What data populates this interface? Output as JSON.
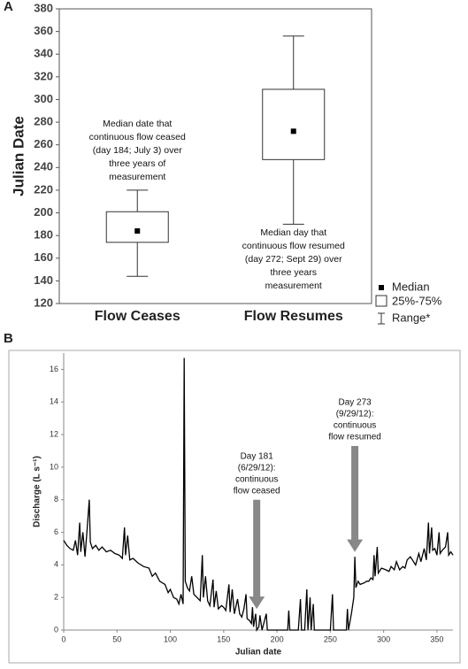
{
  "chart_data": [
    {
      "type": "box",
      "panel": "A",
      "ylabel": "Julian Date",
      "categories": [
        "Flow Ceases",
        "Flow Resumes"
      ],
      "boxes": [
        {
          "min": 144,
          "q1": 174,
          "median": 184,
          "q3": 201,
          "max": 220
        },
        {
          "min": 190,
          "q1": 247,
          "median": 272,
          "q3": 309,
          "max": 356
        }
      ],
      "ylim": [
        120,
        380
      ],
      "yticks": [
        120,
        140,
        160,
        180,
        200,
        220,
        240,
        260,
        280,
        300,
        320,
        340,
        360,
        380
      ],
      "legend": [
        "Median",
        "25%-75%",
        "Range*"
      ],
      "annotations": [
        {
          "lines": [
            "Median date that",
            "continuous flow ceased",
            "(day 184; July 3) over",
            "three years of",
            "measurement"
          ]
        },
        {
          "lines": [
            "Median day that",
            "continuous flow resumed",
            "(day 272; Sept 29) over",
            "three years",
            "measurement"
          ]
        }
      ]
    },
    {
      "type": "line",
      "panel": "B",
      "ylabel": "Discharge (L s⁻¹)",
      "xlabel": "Julian date",
      "color": "#000000",
      "xlim": [
        0,
        365
      ],
      "xticks": [
        0,
        50,
        100,
        150,
        200,
        250,
        300,
        350
      ],
      "ylim": [
        0,
        17
      ],
      "yticks": [
        0,
        2,
        4,
        6,
        8,
        10,
        12,
        14,
        16
      ],
      "x": [
        0,
        3,
        6,
        9,
        11,
        13,
        15,
        16,
        18,
        20,
        22,
        24,
        25,
        27,
        30,
        33,
        36,
        40,
        44,
        48,
        52,
        55,
        57,
        58,
        60,
        62,
        65,
        70,
        75,
        80,
        83,
        86,
        90,
        95,
        98,
        100,
        103,
        106,
        108,
        110,
        112,
        113,
        114,
        116,
        118,
        120,
        122,
        125,
        128,
        130,
        131,
        133,
        135,
        137,
        140,
        141,
        143,
        145,
        148,
        150,
        152,
        155,
        156,
        158,
        160,
        163,
        165,
        167,
        169,
        171,
        172,
        174,
        176,
        177,
        178,
        180,
        181,
        183,
        184,
        186,
        190,
        191,
        210,
        211,
        212,
        220,
        222,
        223,
        226,
        228,
        229,
        231,
        232,
        234,
        235,
        250,
        252,
        253,
        265,
        266,
        267,
        270,
        272,
        273,
        274,
        276,
        278,
        282,
        284,
        286,
        288,
        290,
        291,
        292,
        294,
        295,
        298,
        302,
        305,
        307,
        310,
        312,
        315,
        318,
        320,
        322,
        325,
        327,
        330,
        333,
        335,
        338,
        340,
        342,
        343,
        345,
        346,
        348,
        350,
        352,
        353,
        355,
        358,
        360,
        361,
        363,
        365
      ],
      "values": [
        5.5,
        5.2,
        5.0,
        4.9,
        5.5,
        4.6,
        6.6,
        4.8,
        6.0,
        4.5,
        6.2,
        8.0,
        5.4,
        5.0,
        5.2,
        4.9,
        5.1,
        4.8,
        4.9,
        4.7,
        4.6,
        4.4,
        6.3,
        4.6,
        5.8,
        4.3,
        4.4,
        4.1,
        3.9,
        3.8,
        3.3,
        3.5,
        3.0,
        2.8,
        2.3,
        2.5,
        2.0,
        1.9,
        1.6,
        2.2,
        1.6,
        16.7,
        3.0,
        2.6,
        2.4,
        3.3,
        2.2,
        2.0,
        1.8,
        4.6,
        2.0,
        3.3,
        1.8,
        1.5,
        3.1,
        1.4,
        2.4,
        1.3,
        1.5,
        1.4,
        1.2,
        2.8,
        1.1,
        2.5,
        1.0,
        1.9,
        1.0,
        0.8,
        1.3,
        2.2,
        0.7,
        0.6,
        0.4,
        1.4,
        0.2,
        1.0,
        0,
        0.2,
        0.9,
        0,
        1.0,
        0,
        0,
        1.2,
        0,
        0,
        1.9,
        0,
        0,
        2.5,
        0,
        2.0,
        0,
        1.6,
        0,
        0,
        2.2,
        0,
        0,
        1.3,
        0,
        1.1,
        2.0,
        4.5,
        2.6,
        3.0,
        2.8,
        2.9,
        3.0,
        3.0,
        3.2,
        3.1,
        4.6,
        3.3,
        5.1,
        3.5,
        3.8,
        3.7,
        3.6,
        3.9,
        3.7,
        4.2,
        3.7,
        3.9,
        3.8,
        4.3,
        4.5,
        4.3,
        4.0,
        4.7,
        4.2,
        5.0,
        4.3,
        6.6,
        4.7,
        6.3,
        4.9,
        5.0,
        4.6,
        6.0,
        4.7,
        4.9,
        5.1,
        6.0,
        4.6,
        4.8,
        4.6
      ],
      "annotations": [
        {
          "lines": [
            "Day 181",
            "(6/29/12):",
            "continuous",
            "flow ceased"
          ],
          "x": 181,
          "arrow_from": 8,
          "arrow_to": 1.3
        },
        {
          "lines": [
            "Day 273",
            "(9/29/12):",
            "continuous",
            "flow resumed"
          ],
          "x": 273,
          "arrow_from": 11.3,
          "arrow_to": 4.8
        }
      ]
    }
  ]
}
